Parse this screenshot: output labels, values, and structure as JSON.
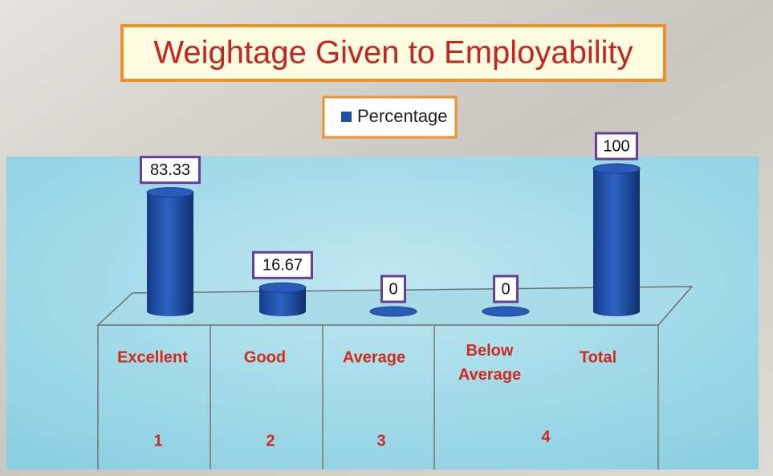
{
  "chart_data": {
    "type": "bar",
    "title": "Weightage Given to Employability",
    "categories": [
      "Excellent",
      "Good",
      "Average",
      "Below Average",
      "Total"
    ],
    "category_numbers": [
      1,
      2,
      3,
      4,
      null
    ],
    "series": [
      {
        "name": "Percentage",
        "color": "#1f4fa8",
        "values": [
          83.33,
          16.67,
          0,
          0,
          100
        ]
      }
    ]
  }
}
